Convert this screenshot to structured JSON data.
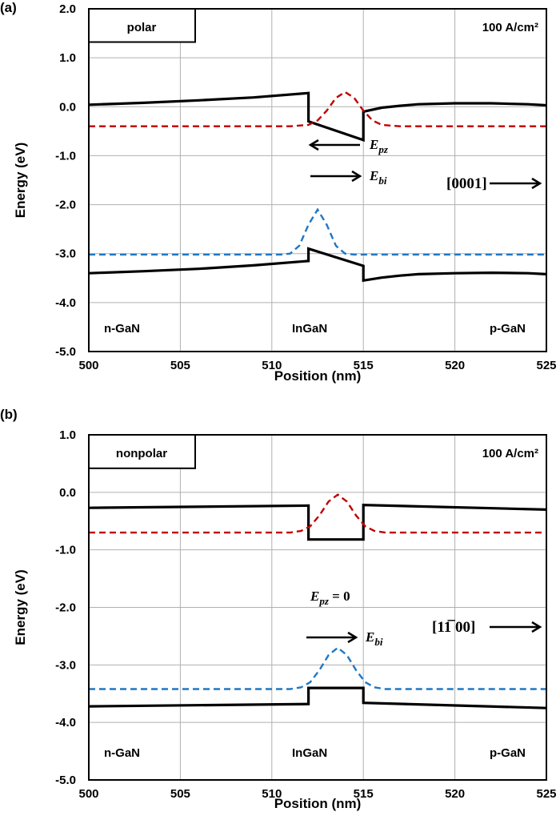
{
  "chart_data": [
    {
      "type": "line",
      "panel_label": "(a)",
      "xlabel": "Position (nm)",
      "ylabel": "Energy (eV)",
      "xlim": [
        500,
        525
      ],
      "ylim": [
        -5.0,
        2.0
      ],
      "x_ticks": [
        "500",
        "505",
        "510",
        "515",
        "520",
        "525"
      ],
      "y_ticks": [
        "2.0",
        "1.0",
        "0.0",
        "-1.0",
        "-2.0",
        "-3.0",
        "-4.0",
        "-5.0"
      ],
      "grid": true,
      "box_label": "polar",
      "current_density": "100 A/cm²",
      "annotations": {
        "epz": "E",
        "epz_sub": "pz",
        "ebi": "E",
        "ebi_sub": "bi",
        "direction": "[0001]"
      },
      "region_labels": [
        "n-GaN",
        "InGaN",
        "p-GaN"
      ],
      "series": [
        {
          "style": "solid",
          "color": "#000000",
          "x": [
            500,
            503,
            506,
            509,
            512,
            512,
            515,
            515,
            516,
            517,
            518,
            520,
            522,
            524,
            525
          ],
          "y": [
            0.04,
            0.08,
            0.13,
            0.19,
            0.28,
            -0.3,
            -0.68,
            -0.1,
            -0.02,
            0.02,
            0.05,
            0.07,
            0.07,
            0.05,
            0.03
          ]
        },
        {
          "style": "dashed",
          "color": "#c00000",
          "x": [
            500,
            510,
            511,
            512,
            512.5,
            513,
            513.5,
            514,
            514.5,
            515,
            515.5,
            516,
            517,
            525
          ],
          "y": [
            -0.4,
            -0.4,
            -0.399,
            -0.37,
            -0.28,
            -0.08,
            0.18,
            0.3,
            0.18,
            -0.08,
            -0.28,
            -0.37,
            -0.399,
            -0.4
          ]
        },
        {
          "style": "dashed",
          "color": "#1f77c4",
          "x": [
            500,
            510.5,
            511,
            511.5,
            512,
            512.5,
            513,
            513.5,
            514,
            514.5,
            525
          ],
          "y": [
            -3.02,
            -3.02,
            -3.0,
            -2.84,
            -2.41,
            -2.1,
            -2.41,
            -2.84,
            -3.0,
            -3.02,
            -3.02
          ]
        },
        {
          "style": "solid",
          "color": "#000000",
          "x": [
            500,
            503,
            506,
            509,
            512,
            512,
            515,
            515,
            516,
            517,
            518,
            520,
            522,
            524,
            525
          ],
          "y": [
            -3.4,
            -3.36,
            -3.31,
            -3.24,
            -3.15,
            -2.9,
            -3.25,
            -3.55,
            -3.49,
            -3.45,
            -3.42,
            -3.4,
            -3.39,
            -3.4,
            -3.42
          ]
        }
      ]
    },
    {
      "type": "line",
      "panel_label": "(b)",
      "xlabel": "Position (nm)",
      "ylabel": "Energy (eV)",
      "xlim": [
        500,
        525
      ],
      "ylim": [
        -5.0,
        1.0
      ],
      "x_ticks": [
        "500",
        "505",
        "510",
        "515",
        "520",
        "525"
      ],
      "y_ticks": [
        "1.0",
        "0.0",
        "-1.0",
        "-2.0",
        "-3.0",
        "-4.0",
        "-5.0"
      ],
      "grid": true,
      "box_label": "nonpolar",
      "current_density": "100 A/cm²",
      "annotations": {
        "epz": "E",
        "epz_sub": "pz",
        "epz_eq": " = 0",
        "ebi": "E",
        "ebi_sub": "bi",
        "direction": "[11̅ 00]"
      },
      "region_labels": [
        "n-GaN",
        "InGaN",
        "p-GaN"
      ],
      "series": [
        {
          "style": "solid",
          "color": "#000000",
          "x": [
            500,
            512,
            512,
            515,
            515,
            525
          ],
          "y": [
            -0.27,
            -0.23,
            -0.82,
            -0.82,
            -0.22,
            -0.3
          ]
        },
        {
          "style": "dashed",
          "color": "#c00000",
          "x": [
            500,
            511,
            511.6,
            512.1,
            512.6,
            513.1,
            513.6,
            514.1,
            514.6,
            515.1,
            515.6,
            516.2,
            525
          ],
          "y": [
            -0.7,
            -0.7,
            -0.67,
            -0.59,
            -0.4,
            -0.16,
            -0.04,
            -0.16,
            -0.4,
            -0.59,
            -0.67,
            -0.7,
            -0.7
          ]
        },
        {
          "style": "dashed",
          "color": "#1f77c4",
          "x": [
            500,
            511,
            511.6,
            512.1,
            512.6,
            513.1,
            513.6,
            514.1,
            514.6,
            515.1,
            515.6,
            516.2,
            525
          ],
          "y": [
            -3.42,
            -3.42,
            -3.39,
            -3.3,
            -3.09,
            -2.83,
            -2.7,
            -2.83,
            -3.09,
            -3.3,
            -3.39,
            -3.42,
            -3.42
          ]
        },
        {
          "style": "solid",
          "color": "#000000",
          "x": [
            500,
            512,
            512,
            515,
            515,
            525
          ],
          "y": [
            -3.72,
            -3.68,
            -3.4,
            -3.4,
            -3.66,
            -3.75
          ]
        }
      ]
    }
  ]
}
